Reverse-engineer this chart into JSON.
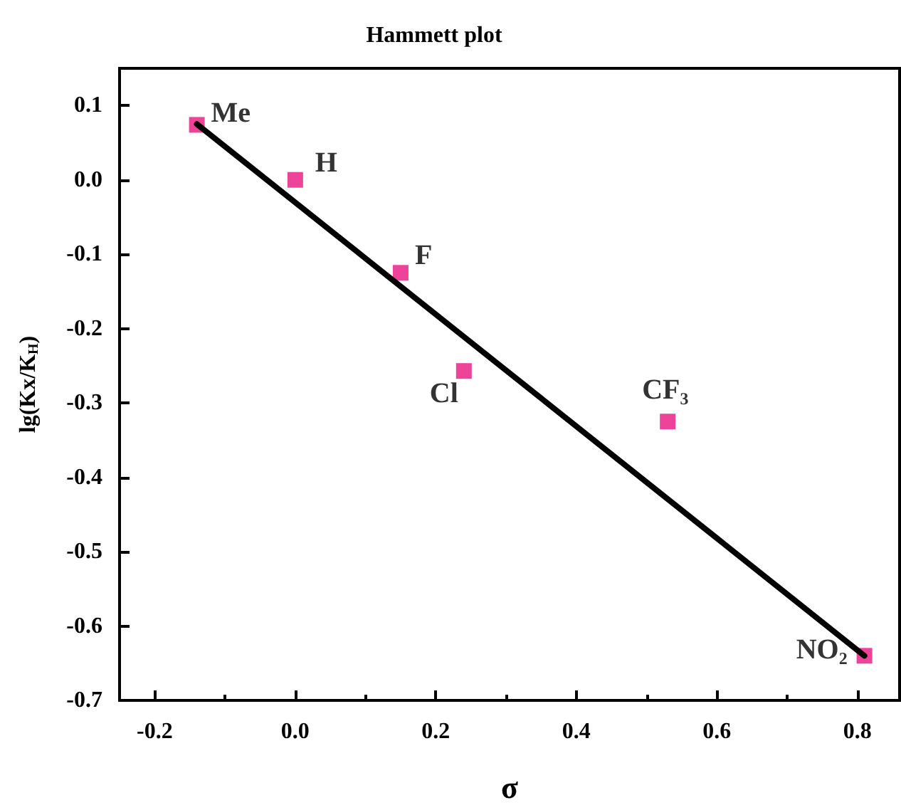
{
  "chart_data": {
    "type": "scatter",
    "title": "Hammett plot",
    "xlabel": "σ",
    "ylabel": "lg(Kx/K$_{H}$)",
    "x": [
      -0.14,
      0.0,
      0.15,
      0.24,
      0.53,
      0.81
    ],
    "series": [
      {
        "color": "#e8147e",
        "values": [
          0.074,
          0.0,
          -0.125,
          -0.257,
          -0.325,
          -0.64
        ],
        "marker": "square"
      },
      {
        "type": "line",
        "color": "#000000",
        "x": [
          -0.14,
          0.81
        ],
        "values": [
          0.075,
          -0.64
        ],
        "marker": "none",
        "line_style": "solid"
      }
    ],
    "annotations": [
      {
        "text": "Me",
        "x": -0.14,
        "y": 0.074
      },
      {
        "text": "H",
        "x": 0.0,
        "y": 0.0
      },
      {
        "text": "F",
        "x": 0.15,
        "y": -0.125
      },
      {
        "text": "Cl",
        "x": 0.24,
        "y": -0.257
      },
      {
        "text": "CF₃",
        "x": 0.53,
        "y": -0.325
      },
      {
        "text": "NO₂",
        "x": 0.81,
        "y": -0.64
      }
    ],
    "xlim": [
      -0.25,
      0.86
    ],
    "xticks": [
      -0.2,
      {
        "value": 0,
        "label": "0.0"
      },
      0.2,
      0.4,
      0.6,
      0.8
    ],
    "ylim": [
      -0.7,
      0.15
    ],
    "yticks": [
      -0.7,
      -0.6,
      -0.5,
      -0.4,
      -0.3,
      -0.2,
      -0.1,
      {
        "value": 0,
        "label": "0.0"
      },
      0.1
    ]
  }
}
